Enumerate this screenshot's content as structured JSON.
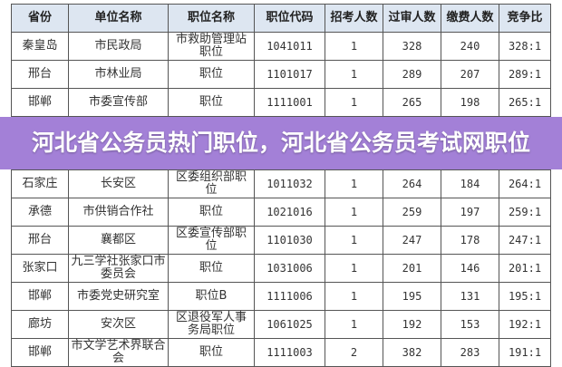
{
  "table": {
    "headers": [
      "省份",
      "单位名称",
      "职位名称",
      "职位代码",
      "招考人数",
      "过审人数",
      "缴费人数",
      "竞争比"
    ],
    "rows": [
      [
        "秦皇岛",
        "市民政局",
        "市救助管理站职位",
        "1041011",
        "1",
        "328",
        "240",
        "328:1"
      ],
      [
        "邢台",
        "市林业局",
        "职位",
        "1101017",
        "1",
        "289",
        "207",
        "289:1"
      ],
      [
        "邯郸",
        "市委宣传部",
        "职位",
        "1111001",
        "1",
        "265",
        "198",
        "265:1"
      ],
      [
        "石家庄",
        "长安区",
        "区委组织部职位",
        "1011032",
        "1",
        "264",
        "184",
        "264:1"
      ],
      [
        "承德",
        "市供销合作社",
        "职位",
        "1021016",
        "1",
        "259",
        "197",
        "259:1"
      ],
      [
        "邢台",
        "襄都区",
        "区委宣传部职位",
        "1101030",
        "1",
        "247",
        "178",
        "247:1"
      ],
      [
        "张家口",
        "九三学社张家口市委员会",
        "职位",
        "1031006",
        "1",
        "201",
        "146",
        "201:1"
      ],
      [
        "邯郸",
        "市委党史研究室",
        "职位B",
        "1111006",
        "1",
        "195",
        "131",
        "195:1"
      ],
      [
        "廊坊",
        "安次区",
        "区退役军人事务局职位",
        "1061025",
        "1",
        "192",
        "153",
        "192:1"
      ],
      [
        "邯郸",
        "市文学艺术界联合会",
        "职位",
        "1111003",
        "2",
        "382",
        "283",
        "191:1"
      ]
    ]
  },
  "overlay": {
    "title": "河北省公务员热门职位，河北省公务员考试网职位"
  },
  "colors": {
    "header_bg": "#dde6f1",
    "overlay": "#966ed2"
  }
}
